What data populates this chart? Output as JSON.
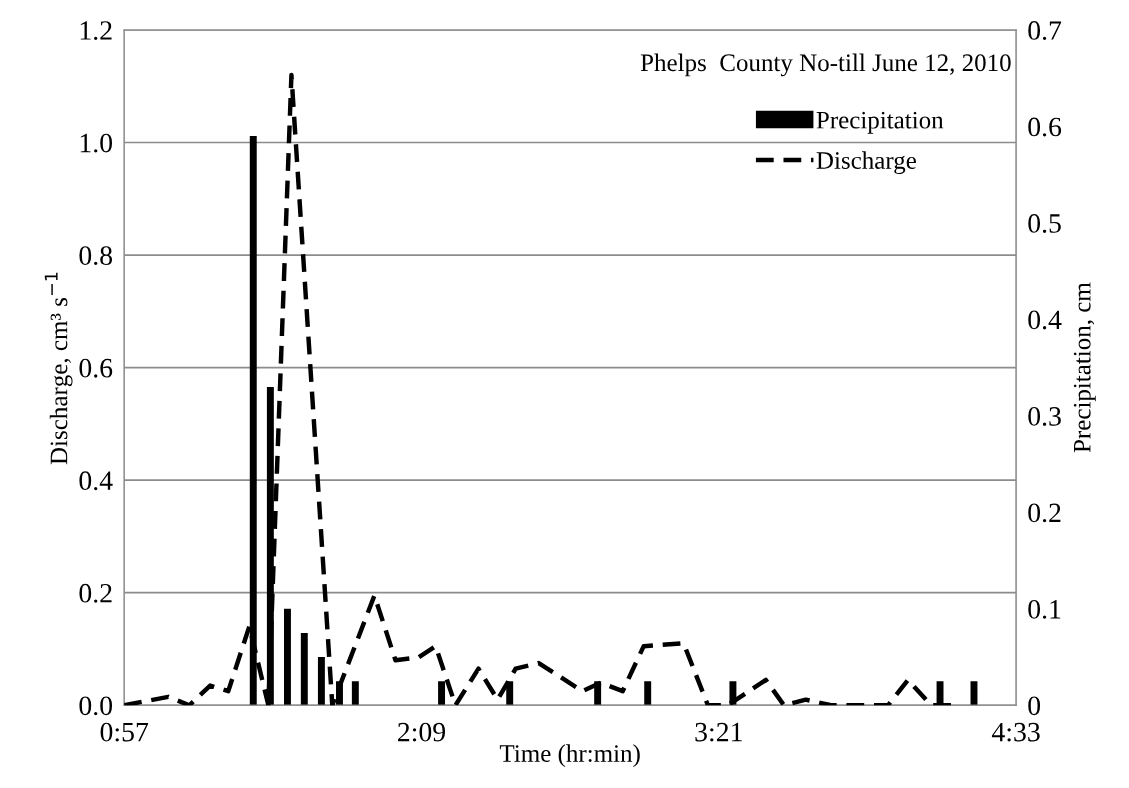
{
  "chart_data": {
    "type": "line",
    "title": "Phelps  County No-till June 12, 2010",
    "xlabel": "Time (hr:min)",
    "ylabel": "Discharge, cm³ s$^{−1}$",
    "y2label": "Precipitation, cm",
    "xlim": [
      0.95,
      4.55
    ],
    "xticks": [
      {
        "value": 0.95,
        "label": "0:57"
      },
      {
        "value": 2.15,
        "label": "2:09"
      },
      {
        "value": 3.35,
        "label": "3:21"
      },
      {
        "value": 4.55,
        "label": "4:33"
      }
    ],
    "ylim": [
      0,
      1.2
    ],
    "yticks": [
      {
        "value": 0,
        "label": "0.0"
      },
      {
        "value": 0.2,
        "label": "0.2"
      },
      {
        "value": 0.4,
        "label": "0.4"
      },
      {
        "value": 0.6,
        "label": "0.6"
      },
      {
        "value": 0.8,
        "label": "0.8"
      },
      {
        "value": 1.0,
        "label": "1.0"
      },
      {
        "value": 1.2,
        "label": "1.2"
      }
    ],
    "y2lim": [
      0,
      0.7
    ],
    "y2ticks": [
      0,
      0.1,
      0.2,
      0.3,
      0.4,
      0.5,
      0.6,
      0.7
    ],
    "grid": true,
    "legend": "top right",
    "series": [
      {
        "name": "Precipitation",
        "type": "bar",
        "axis": "y2",
        "color": "#000000",
        "x": [
          1.471,
          1.54,
          1.609,
          1.677,
          1.746,
          1.819,
          1.883,
          2.231,
          2.506,
          2.861,
          3.063,
          3.407,
          4.243,
          4.38
        ],
        "values": [
          0.59,
          0.33,
          0.1,
          0.075,
          0.05,
          0.025,
          0.025,
          0.025,
          0.025,
          0.025,
          0.025,
          0.025,
          0.025,
          0.025
        ]
      },
      {
        "name": "Discharge",
        "axis": "y",
        "color": "#000000",
        "line_style": "dashed",
        "x": [
          0.95,
          1.128,
          1.213,
          1.297,
          1.37,
          1.455,
          1.532,
          1.625,
          1.79,
          1.96,
          2.045,
          2.138,
          2.207,
          2.287,
          2.38,
          2.457,
          2.53,
          2.623,
          2.8,
          2.873,
          2.962,
          3.047,
          3.208,
          3.306,
          3.386,
          3.54,
          3.613,
          3.701,
          3.803,
          4.033,
          4.114,
          4.207,
          4.295
        ],
        "values": [
          0,
          0.015,
          0,
          0.035,
          0.025,
          0.14,
          0,
          1.12,
          0,
          0.195,
          0.08,
          0.085,
          0.105,
          0,
          0.065,
          0.01,
          0.065,
          0.075,
          0.025,
          0.04,
          0.025,
          0.105,
          0.11,
          0,
          0,
          0.045,
          0,
          0.01,
          0,
          0,
          0.045,
          0,
          0
        ]
      }
    ]
  }
}
